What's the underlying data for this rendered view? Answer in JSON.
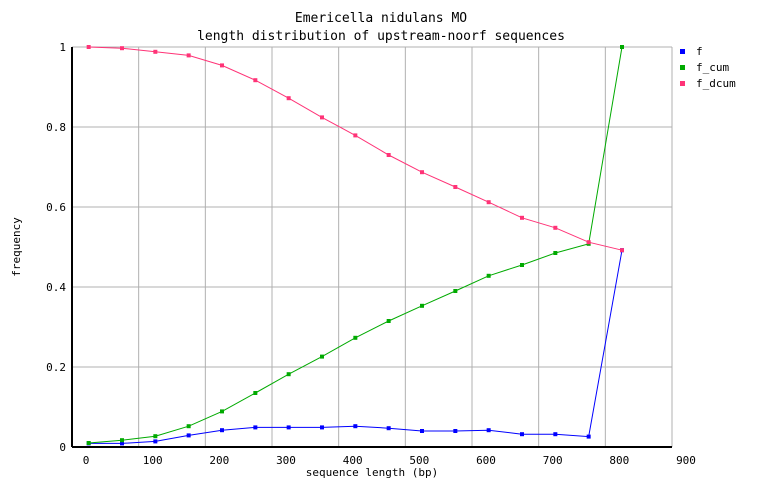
{
  "chart_data": {
    "type": "line",
    "title": "Emericella nidulans MO",
    "subtitle": "length distribution of upstream-noorf sequences",
    "xlabel": "sequence length (bp)",
    "ylabel": "frequency",
    "xlim": [
      0,
      900
    ],
    "ylim": [
      0,
      1
    ],
    "xticks": [
      "0",
      "100",
      "200",
      "300",
      "400",
      "500",
      "600",
      "700",
      "800",
      "900"
    ],
    "yticks": [
      "0",
      "0.2",
      "0.4",
      "0.6",
      "0.8",
      "1"
    ],
    "grid": true,
    "legend_position": "top-right",
    "x": [
      25,
      75,
      125,
      175,
      225,
      275,
      325,
      375,
      425,
      475,
      525,
      575,
      625,
      675,
      725,
      775,
      825
    ],
    "series": [
      {
        "name": "f",
        "color": "#0000ff",
        "values": [
          0.009,
          0.009,
          0.014,
          0.029,
          0.042,
          0.049,
          0.049,
          0.049,
          0.052,
          0.047,
          0.04,
          0.04,
          0.042,
          0.032,
          0.032,
          0.026,
          0.492
        ]
      },
      {
        "name": "f_cum",
        "color": "#00aa00",
        "values": [
          0.01,
          0.017,
          0.027,
          0.052,
          0.089,
          0.135,
          0.182,
          0.226,
          0.273,
          0.315,
          0.353,
          0.39,
          0.428,
          0.455,
          0.485,
          0.508,
          1.0
        ]
      },
      {
        "name": "f_dcum",
        "color": "#ff3377",
        "values": [
          1.0,
          0.997,
          0.988,
          0.979,
          0.954,
          0.917,
          0.872,
          0.824,
          0.779,
          0.73,
          0.687,
          0.65,
          0.612,
          0.573,
          0.548,
          0.512,
          0.492
        ]
      }
    ]
  }
}
